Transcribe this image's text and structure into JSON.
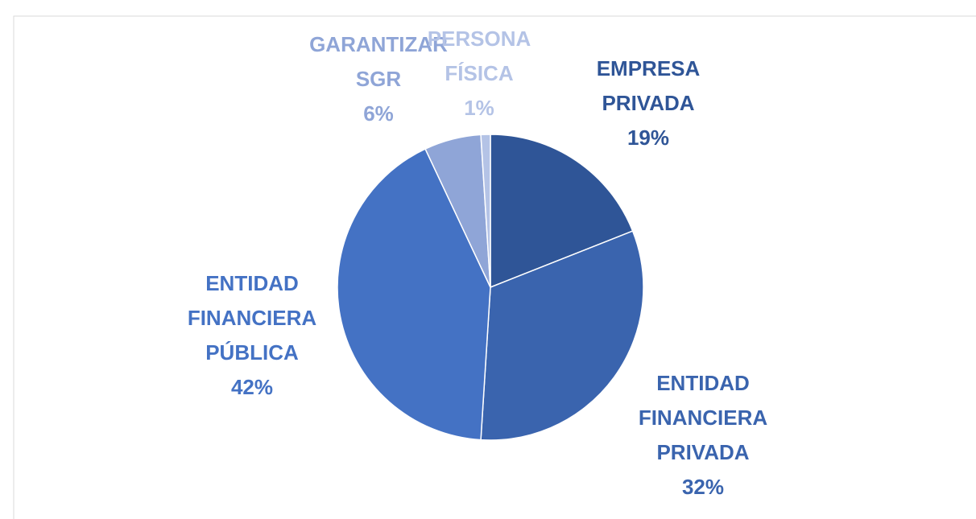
{
  "chart_data": {
    "type": "pie",
    "categories": [
      "EMPRESA PRIVADA",
      "ENTIDAD FINANCIERA PRIVADA",
      "ENTIDAD FINANCIERA PÚBLICA",
      "GARANTIZAR SGR",
      "PERSONA FÍSICA"
    ],
    "values": [
      19,
      32,
      42,
      6,
      1
    ],
    "value_labels": [
      "19%",
      "32%",
      "42%",
      "6%",
      "1%"
    ],
    "colors": [
      "#2f5597",
      "#3a64ae",
      "#4472c4",
      "#8fa5d7",
      "#b4c3e6"
    ]
  }
}
